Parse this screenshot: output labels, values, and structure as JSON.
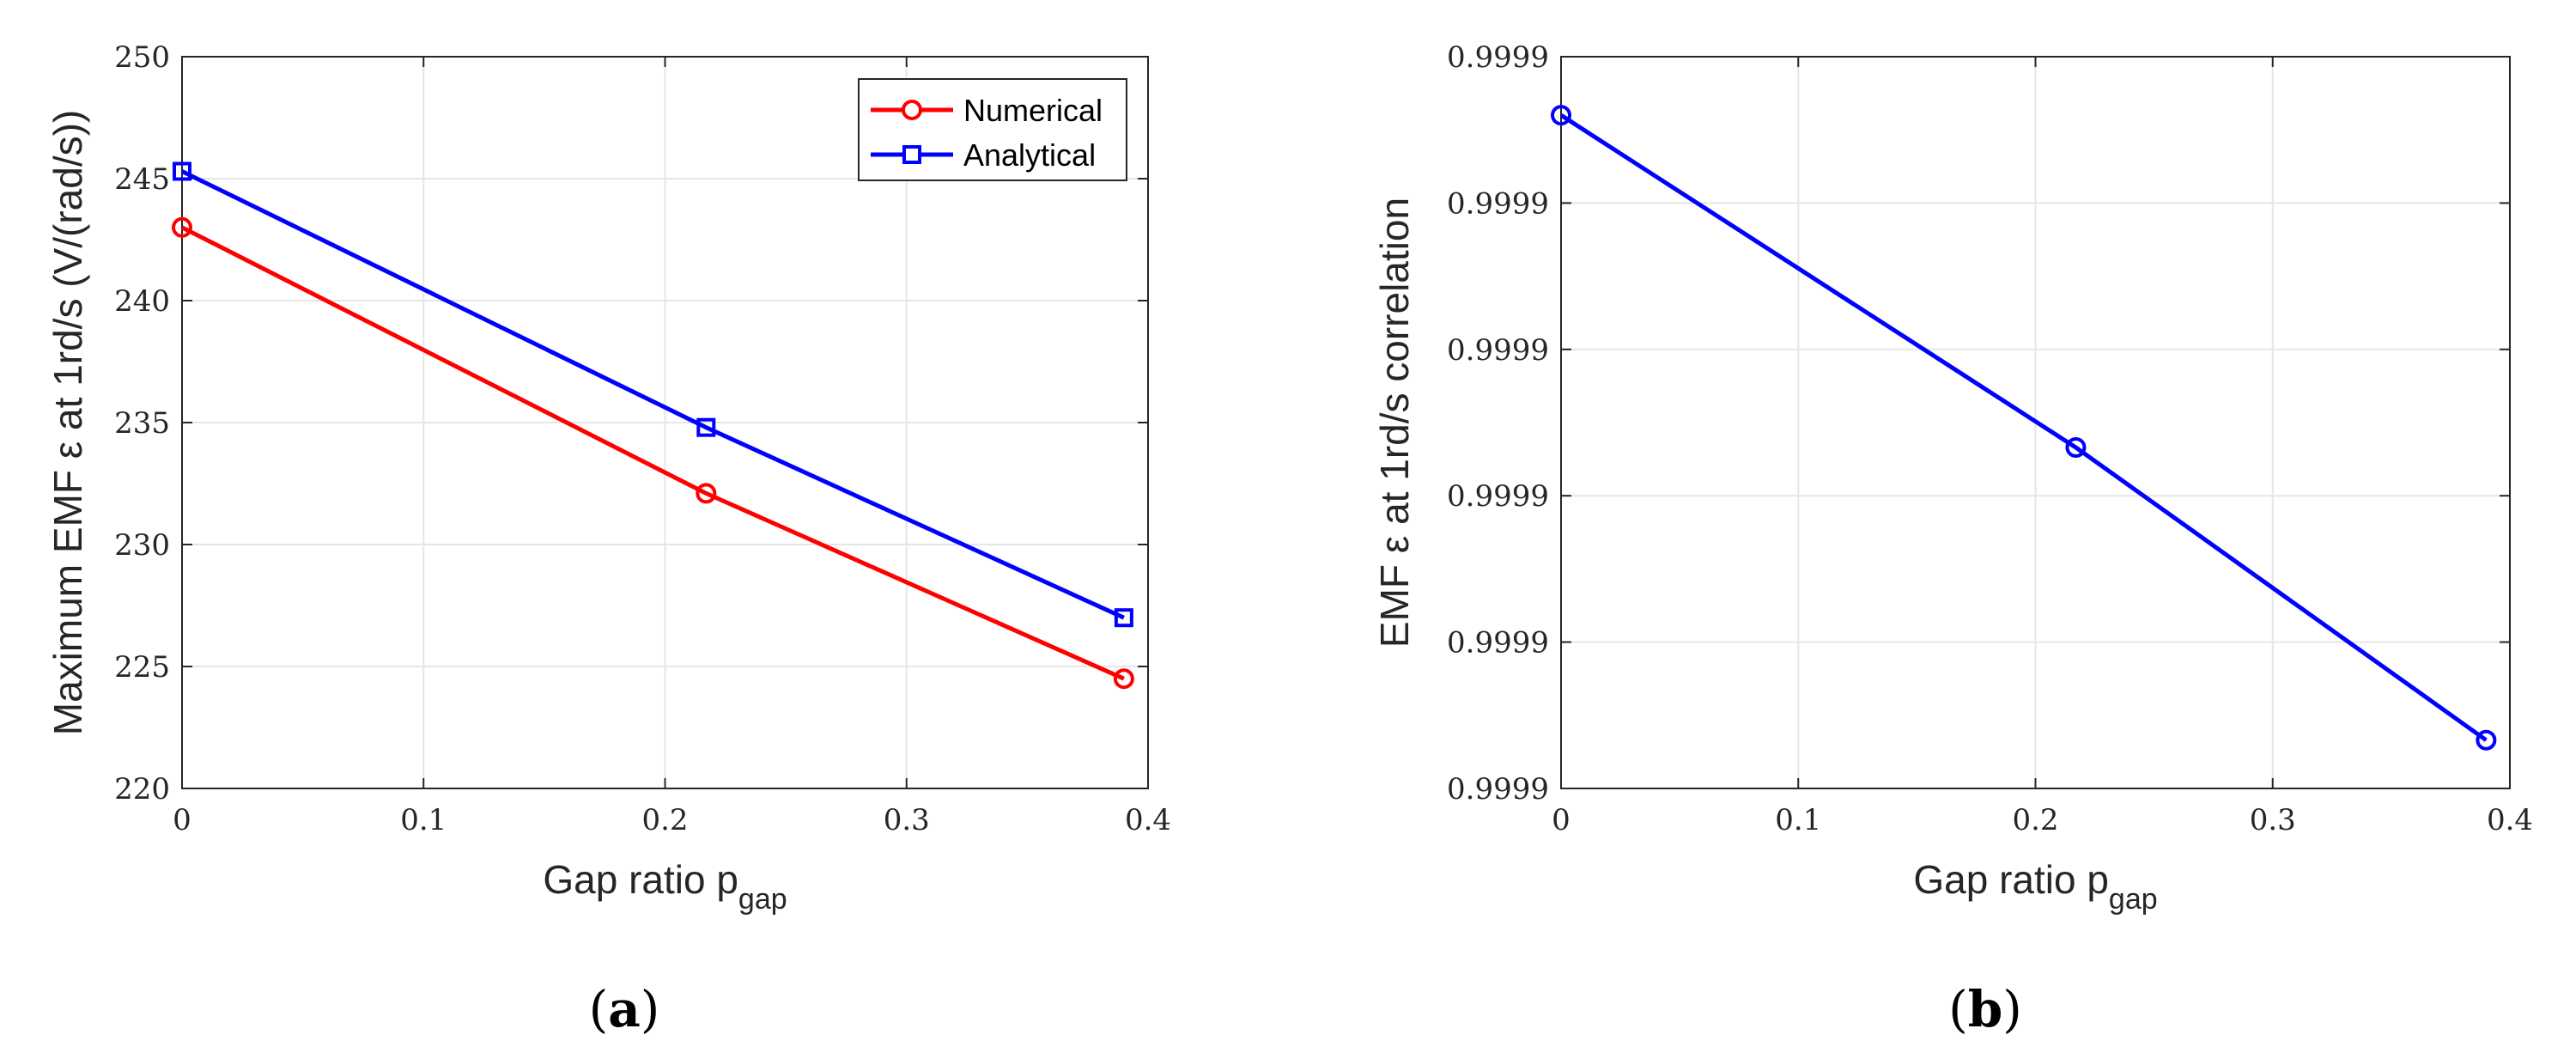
{
  "colors": {
    "numerical": "#ff0000",
    "analytical": "#0000ff",
    "grid": "#e6e6e6",
    "axis": "#262626"
  },
  "chart_data": [
    {
      "id": "a",
      "type": "line",
      "panel_label": {
        "open": "(",
        "letter": "a",
        "close": ")"
      },
      "xlabel": {
        "main": "Gap ratio p",
        "sub": "gap"
      },
      "ylabel": "Maximum EMF ε at 1rd/s (V/(rad/s))",
      "xlim": [
        0,
        0.4
      ],
      "ylim": [
        220,
        250
      ],
      "xticks": [
        0,
        0.1,
        0.2,
        0.3,
        0.4
      ],
      "xtick_labels": [
        "0",
        "0.1",
        "0.2",
        "0.3",
        "0.4"
      ],
      "yticks": [
        220,
        225,
        230,
        235,
        240,
        245,
        250
      ],
      "ytick_labels": [
        "220",
        "225",
        "230",
        "235",
        "240",
        "245",
        "250"
      ],
      "grid": true,
      "legend": "top-right",
      "series": [
        {
          "name": "Numerical",
          "marker": "circle",
          "color": "#ff0000",
          "x": [
            0,
            0.217,
            0.39
          ],
          "y": [
            243.0,
            232.1,
            224.5
          ]
        },
        {
          "name": "Analytical",
          "marker": "square",
          "color": "#0000ff",
          "x": [
            0,
            0.217,
            0.39
          ],
          "y": [
            245.3,
            234.8,
            227.0
          ]
        }
      ]
    },
    {
      "id": "b",
      "type": "line",
      "panel_label": {
        "open": "(",
        "letter": "b",
        "close": ")"
      },
      "xlabel": {
        "main": "Gap ratio p",
        "sub": "gap"
      },
      "ylabel": "EMF ε at 1rd/s correlation",
      "xlim": [
        0,
        0.4
      ],
      "ylim": [
        0,
        5
      ],
      "xticks": [
        0,
        0.1,
        0.2,
        0.3,
        0.4
      ],
      "xtick_labels": [
        "0",
        "0.1",
        "0.2",
        "0.3",
        "0.4"
      ],
      "yticks": [
        0,
        1,
        2,
        3,
        4,
        5
      ],
      "ytick_labels": [
        "0.9999",
        "0.9999",
        "0.9999",
        "0.9999",
        "0.9999",
        "0.9999"
      ],
      "grid": true,
      "legend": "none",
      "series": [
        {
          "name": "Correlation",
          "marker": "circle",
          "color": "#0000ff",
          "x": [
            0,
            0.217,
            0.39
          ],
          "y": [
            4.6,
            2.33,
            0.33
          ]
        }
      ]
    }
  ]
}
